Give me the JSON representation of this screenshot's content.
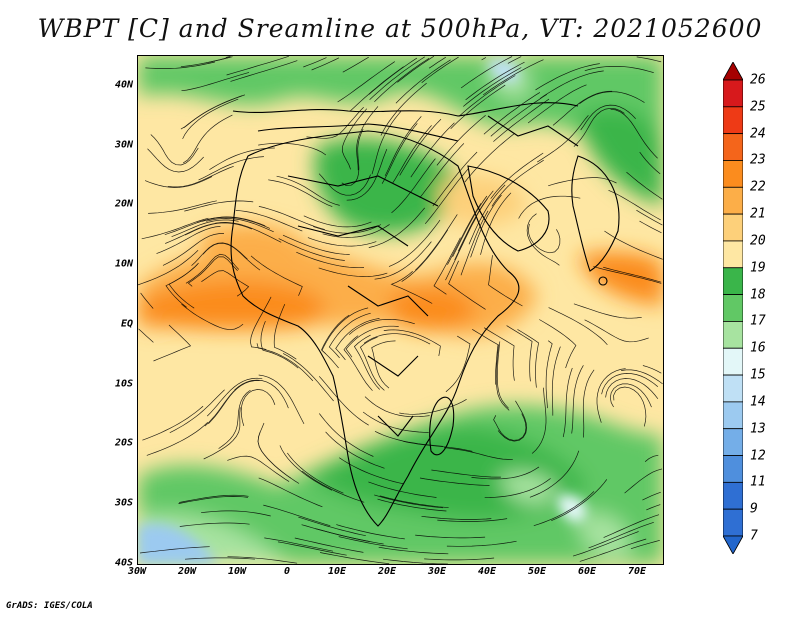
{
  "title": "WBPT [C] and Sreamline at 500hPa, VT: 2021052600",
  "credit": "GrADS: IGES/COLA",
  "map": {
    "lon_range": [
      -30,
      75
    ],
    "lat_range": [
      -40,
      45
    ],
    "lat_ticks": [
      {
        "value": 40,
        "label": "40N"
      },
      {
        "value": 30,
        "label": "30N"
      },
      {
        "value": 20,
        "label": "20N"
      },
      {
        "value": 10,
        "label": "10N"
      },
      {
        "value": 0,
        "label": "EQ"
      },
      {
        "value": -10,
        "label": "10S"
      },
      {
        "value": -20,
        "label": "20S"
      },
      {
        "value": -30,
        "label": "30S"
      },
      {
        "value": -40,
        "label": "40S"
      }
    ],
    "lon_ticks": [
      {
        "value": -30,
        "label": "30W"
      },
      {
        "value": -20,
        "label": "20W"
      },
      {
        "value": -10,
        "label": "10W"
      },
      {
        "value": 0,
        "label": "0"
      },
      {
        "value": 10,
        "label": "10E"
      },
      {
        "value": 20,
        "label": "20E"
      },
      {
        "value": 30,
        "label": "30E"
      },
      {
        "value": 40,
        "label": "40E"
      },
      {
        "value": 50,
        "label": "50E"
      },
      {
        "value": 60,
        "label": "60E"
      },
      {
        "value": 70,
        "label": "70E"
      }
    ]
  },
  "colorbar": {
    "labels": [
      "26",
      "25",
      "24",
      "23",
      "22",
      "21",
      "20",
      "19",
      "18",
      "17",
      "16",
      "15",
      "14",
      "13",
      "12",
      "11",
      "9",
      "7"
    ],
    "colors": [
      "#a50000",
      "#d7191c",
      "#ee3a16",
      "#f4651b",
      "#fb8c1e",
      "#fcae48",
      "#fdd07a",
      "#fee7a3",
      "#3ab54a",
      "#61c865",
      "#a7e3a0",
      "#e3f7f8",
      "#bfe0f5",
      "#9ccaf0",
      "#74aee8",
      "#4f8fdd",
      "#2f6fd3"
    ]
  }
}
